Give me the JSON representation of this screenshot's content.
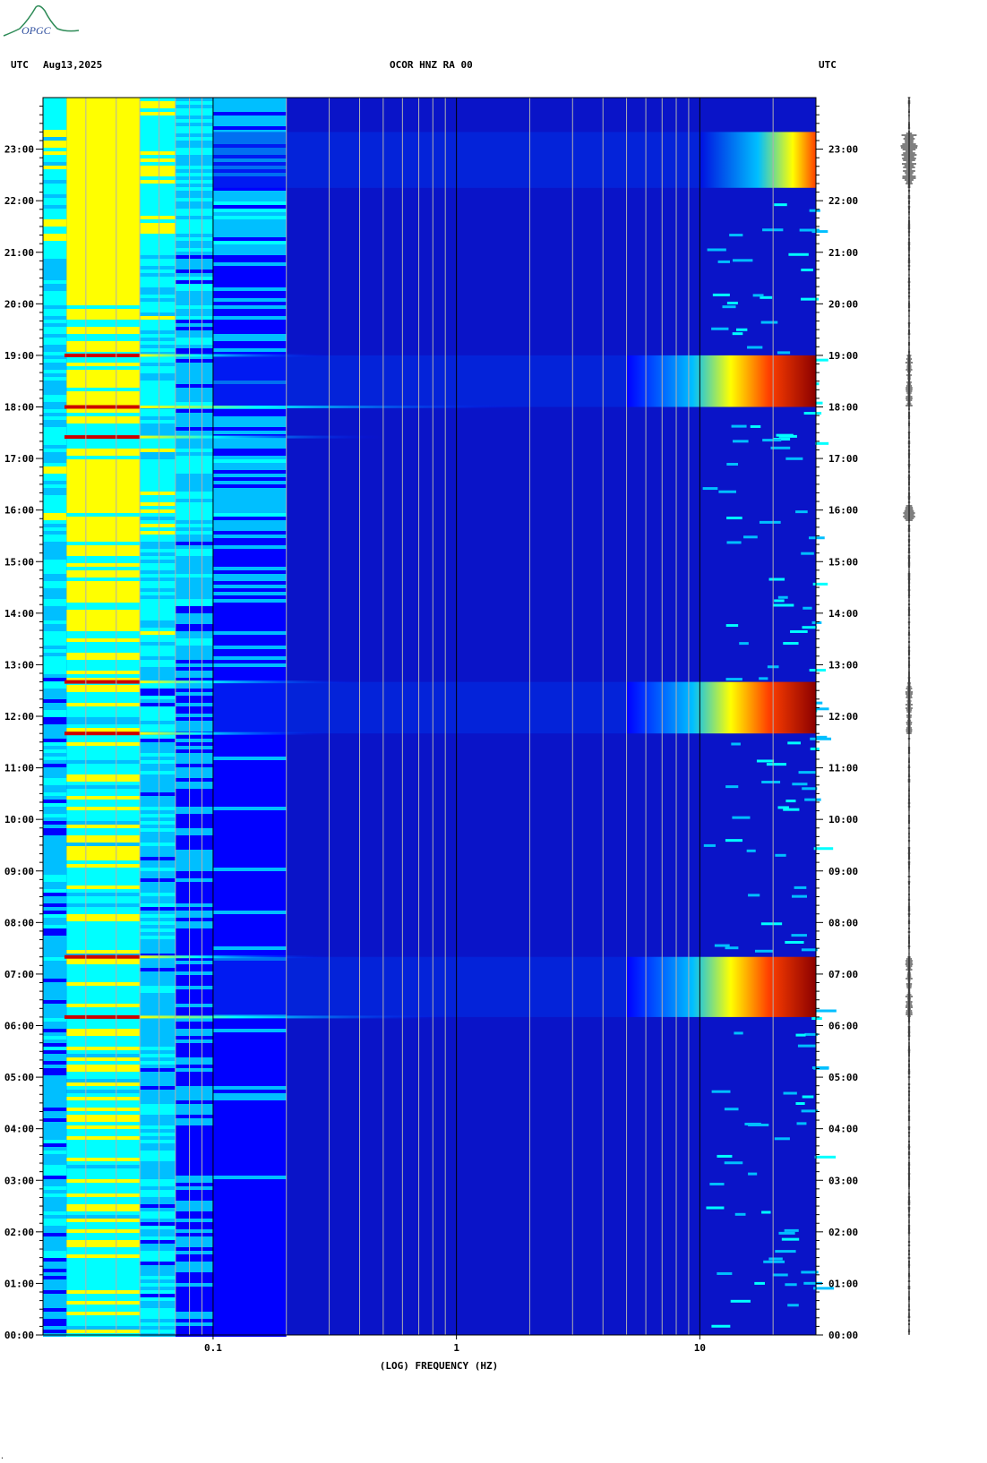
{
  "header": {
    "left_tz": "UTC",
    "date": "Aug13,2025",
    "station": "OCOR HNZ RA 00",
    "right_tz": "UTC"
  },
  "logo": {
    "text": "OPGC"
  },
  "footer_mark": ".",
  "chart_data": {
    "type": "heatmap",
    "title": "OCOR HNZ RA 00",
    "xlabel": "(LOG) FREQUENCY (HZ)",
    "x_scale": "log",
    "xlim": [
      0.02,
      30
    ],
    "x_tick_labels": [
      "0.1",
      "1",
      "10"
    ],
    "x_tick_values": [
      0.1,
      1,
      10
    ],
    "ylabel": "UTC",
    "ylim_hours": [
      0,
      24
    ],
    "y_tick_labels": [
      "00:00",
      "01:00",
      "02:00",
      "03:00",
      "04:00",
      "05:00",
      "06:00",
      "07:00",
      "08:00",
      "09:00",
      "10:00",
      "11:00",
      "12:00",
      "13:00",
      "14:00",
      "15:00",
      "16:00",
      "17:00",
      "18:00",
      "19:00",
      "20:00",
      "21:00",
      "22:00",
      "23:00"
    ],
    "colormap": [
      "#00008b",
      "#0000ff",
      "#00bfff",
      "#00ffff",
      "#ffff00",
      "#ff8000",
      "#ff0000",
      "#8b0000"
    ],
    "background_color": "#0a14c8",
    "high_energy_bands": [
      {
        "start": "06:10",
        "end": "07:20",
        "f_min": 5,
        "peak_color": "#8b0000"
      },
      {
        "start": "11:40",
        "end": "12:40",
        "f_min": 5,
        "peak_color": "#8b0000"
      },
      {
        "start": "18:00",
        "end": "19:00",
        "f_min": 5,
        "peak_color": "#8b0000"
      },
      {
        "start": "22:15",
        "end": "23:20",
        "f_min": 10,
        "peak_color": "#ff8000"
      }
    ],
    "horizontal_lines": [
      {
        "time": "06:10",
        "f_max": 1
      },
      {
        "time": "07:20",
        "f_max": 0.3
      },
      {
        "time": "11:40",
        "f_max": 0.3
      },
      {
        "time": "12:40",
        "f_max": 0.4
      },
      {
        "time": "17:25",
        "f_max": 0.5
      },
      {
        "time": "18:00",
        "f_max": 2
      },
      {
        "time": "19:00",
        "f_max": 0.3
      }
    ]
  }
}
